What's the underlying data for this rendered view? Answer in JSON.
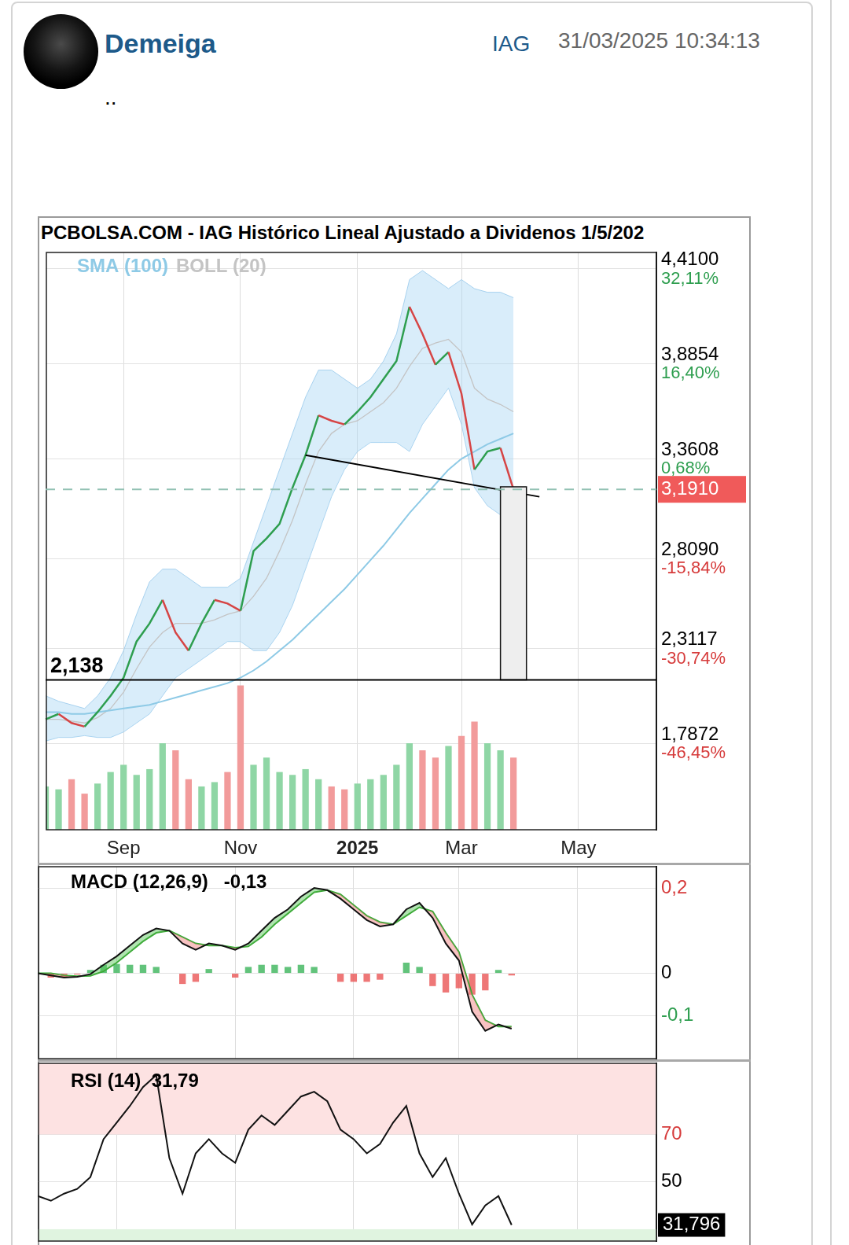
{
  "post": {
    "user": "Demeiga",
    "ticker": "IAG",
    "date": "31/03/2025 10:34:13",
    "text": ".."
  },
  "chart_data": [
    {
      "type": "line",
      "title": "PCBOLSA.COM - IAG Histórico Lineal Ajustado a Dividenos 1/5/202",
      "categories": [
        null,
        null,
        null,
        null,
        null,
        null,
        "Sep",
        null,
        null,
        null,
        null,
        null,
        null,
        null,
        null,
        "Nov",
        null,
        null,
        null,
        null,
        null,
        null,
        null,
        null,
        "2025",
        null,
        null,
        null,
        null,
        null,
        null,
        null,
        "Mar",
        null,
        null,
        null,
        null,
        null,
        null,
        null,
        null,
        "May",
        null,
        null,
        null,
        null,
        null,
        null
      ],
      "legend": "top-left",
      "grid": true,
      "series": [
        {
          "name": "SMA (100)",
          "color": "#8ecae6",
          "values": [
            1.96,
            1.96,
            1.95,
            1.95,
            1.96,
            1.97,
            1.98,
            1.99,
            2.0,
            2.02,
            2.04,
            2.06,
            2.08,
            2.1,
            2.12,
            2.15,
            2.19,
            2.24,
            2.3,
            2.36,
            2.43,
            2.5,
            2.57,
            2.64,
            2.72,
            2.8,
            2.88,
            2.97,
            3.06,
            3.14,
            3.22,
            3.3,
            3.36,
            3.4,
            3.44,
            3.47,
            3.5,
            null,
            null,
            null,
            null,
            null,
            null,
            null,
            null,
            null,
            null,
            null
          ]
        },
        {
          "name": "BOLL (20)",
          "color": "#c4c4c4",
          "values": [
            1.92,
            1.92,
            1.91,
            1.9,
            1.93,
            1.98,
            2.07,
            2.2,
            2.32,
            2.4,
            2.45,
            2.45,
            2.45,
            2.47,
            2.5,
            2.52,
            2.6,
            2.7,
            2.85,
            3.02,
            3.22,
            3.4,
            3.5,
            3.55,
            3.57,
            3.62,
            3.67,
            3.75,
            3.87,
            3.97,
            4.0,
            4.02,
            3.95,
            3.75,
            3.69,
            3.66,
            3.62,
            null,
            null,
            null,
            null,
            null,
            null,
            null,
            null,
            null,
            null,
            null
          ],
          "upper": [
            2.05,
            2.02,
            2.0,
            1.98,
            2.05,
            2.15,
            2.3,
            2.5,
            2.68,
            2.75,
            2.75,
            2.7,
            2.65,
            2.65,
            2.65,
            2.7,
            2.9,
            3.1,
            3.3,
            3.5,
            3.7,
            3.85,
            3.85,
            3.8,
            3.75,
            3.8,
            3.9,
            4.05,
            4.35,
            4.4,
            4.35,
            4.3,
            4.35,
            4.3,
            4.28,
            4.28,
            4.25,
            null,
            null,
            null,
            null,
            null,
            null,
            null,
            null,
            null,
            null,
            null
          ],
          "lower": [
            1.8,
            1.82,
            1.82,
            1.83,
            1.82,
            1.82,
            1.85,
            1.9,
            1.95,
            2.05,
            2.15,
            2.2,
            2.25,
            2.3,
            2.35,
            2.35,
            2.3,
            2.3,
            2.4,
            2.55,
            2.75,
            2.95,
            3.15,
            3.3,
            3.4,
            3.45,
            3.45,
            3.45,
            3.4,
            3.55,
            3.65,
            3.75,
            3.55,
            3.2,
            3.1,
            3.05,
            3.0,
            null,
            null,
            null,
            null,
            null,
            null,
            null,
            null,
            null,
            null,
            null
          ]
        },
        {
          "type": "bar",
          "axis": "y2",
          "values": [
            30,
            28,
            35,
            25,
            32,
            40,
            45,
            38,
            42,
            60,
            55,
            35,
            30,
            33,
            40,
            100,
            45,
            50,
            40,
            38,
            42,
            35,
            30,
            28,
            32,
            35,
            38,
            45,
            60,
            55,
            50,
            58,
            65,
            75,
            60,
            55,
            50,
            null,
            null,
            null,
            null,
            null,
            null,
            null,
            null,
            null,
            null,
            null
          ],
          "colors": [
            "#8fd6a5",
            "#8fd6a5",
            "#f29b9b",
            "#f29b9b",
            "#8fd6a5",
            "#8fd6a5",
            "#8fd6a5",
            "#8fd6a5",
            "#8fd6a5",
            "#8fd6a5",
            "#f29b9b",
            "#f29b9b",
            "#8fd6a5",
            "#8fd6a5",
            "#f29b9b",
            "#f29b9b",
            "#8fd6a5",
            "#8fd6a5",
            "#8fd6a5",
            "#8fd6a5",
            "#8fd6a5",
            "#8fd6a5",
            "#f29b9b",
            "#f29b9b",
            "#8fd6a5",
            "#8fd6a5",
            "#8fd6a5",
            "#8fd6a5",
            "#8fd6a5",
            "#f29b9b",
            "#f29b9b",
            "#8fd6a5",
            "#f29b9b",
            "#f29b9b",
            "#8fd6a5",
            "#8fd6a5",
            "#f29b9b",
            null,
            null,
            null,
            null,
            null,
            null,
            null,
            null,
            null,
            null,
            null
          ]
        },
        {
          "color": "#2e9e4f",
          "values": [
            1.92,
            1.95,
            1.9,
            1.88,
            1.96,
            2.05,
            2.15,
            2.35,
            2.45,
            2.58,
            2.4,
            2.3,
            2.45,
            2.58,
            2.56,
            2.52,
            2.85,
            2.92,
            3.0,
            3.2,
            3.38,
            3.6,
            3.57,
            3.55,
            3.62,
            3.7,
            3.8,
            3.9,
            4.2,
            4.05,
            3.88,
            3.95,
            3.72,
            3.3,
            3.4,
            3.42,
            3.191,
            null,
            null,
            null,
            null,
            null,
            null,
            null,
            null,
            null,
            null,
            null
          ],
          "colors": [
            "#2e9e4f",
            "#2e9e4f",
            "#d64545",
            "#d64545",
            "#2e9e4f",
            "#2e9e4f",
            "#2e9e4f",
            "#2e9e4f",
            "#2e9e4f",
            "#2e9e4f",
            "#d64545",
            "#d64545",
            "#2e9e4f",
            "#2e9e4f",
            "#d64545",
            "#d64545",
            "#2e9e4f",
            "#2e9e4f",
            "#2e9e4f",
            "#2e9e4f",
            "#2e9e4f",
            "#2e9e4f",
            "#d64545",
            "#d64545",
            "#2e9e4f",
            "#2e9e4f",
            "#2e9e4f",
            "#2e9e4f",
            "#2e9e4f",
            "#d64545",
            "#d64545",
            "#2e9e4f",
            "#d64545",
            "#d64545",
            "#2e9e4f",
            "#2e9e4f",
            "#d64545",
            null,
            null,
            null,
            null,
            null,
            null,
            null,
            null,
            null,
            null,
            null
          ]
        },
        {
          "color": "#000000",
          "values": [
            null,
            null,
            null,
            null,
            null,
            null,
            null,
            null,
            null,
            null,
            null,
            null,
            null,
            null,
            null,
            null,
            null,
            null,
            null,
            null,
            3.38,
            null,
            null,
            null,
            null,
            null,
            null,
            null,
            null,
            null,
            null,
            null,
            null,
            null,
            null,
            null,
            null,
            null,
            3.15,
            null,
            null,
            null,
            null,
            null,
            null,
            null,
            null,
            null
          ]
        }
      ],
      "ylim": [
        1.31,
        4.5
      ],
      "yticks": [
        {
          "value": 4.41,
          "label": [
            "4,4100",
            "32,11%"
          ]
        },
        {
          "value": 3.8854,
          "label": [
            "3,8854",
            "16,40%"
          ]
        },
        {
          "value": 3.3608,
          "label": [
            "3,3608",
            "0,68%"
          ]
        },
        {
          "value": 2.809,
          "label": [
            "2,8090",
            "-15,84%"
          ]
        },
        {
          "value": 2.3117,
          "label": [
            "2,3117",
            "-30,74%"
          ]
        },
        {
          "value": 1.7872,
          "label": [
            "1,7872",
            "-46,45%"
          ]
        }
      ],
      "y2lim": [
        0,
        400
      ],
      "y2ticks": [],
      "levels": [
        {
          "value": 2.138,
          "label": "2,138",
          "color": "#000000",
          "line_style": "solid"
        },
        {
          "value": 3.191,
          "label": "3,1910",
          "color": "#f05a5a",
          "line_style": "dashed"
        }
      ],
      "projection": {
        "x": [
          35,
          37
        ],
        "y": [
          2.138,
          3.205
        ]
      }
    },
    {
      "type": "macd",
      "title": "MACD (12,26,9)   -0,13",
      "categories": [
        null,
        null,
        null,
        null,
        null,
        null,
        "Sep",
        null,
        null,
        null,
        null,
        null,
        null,
        null,
        null,
        "Nov",
        null,
        null,
        null,
        null,
        null,
        null,
        null,
        null,
        "2025",
        null,
        null,
        null,
        null,
        null,
        null,
        null,
        "Mar",
        null,
        null,
        null,
        null,
        null,
        null,
        null,
        null,
        "May",
        null,
        null,
        null,
        null,
        null,
        null
      ],
      "tick_labels": "y",
      "grid": true,
      "series": [
        {
          "color": "#111111",
          "values": [
            0,
            -0.005,
            -0.01,
            -0.008,
            -0.002,
            0.02,
            0.04,
            0.065,
            0.09,
            0.105,
            0.1,
            0.07,
            0.055,
            0.07,
            0.065,
            0.055,
            0.07,
            0.1,
            0.13,
            0.15,
            0.18,
            0.2,
            0.195,
            0.175,
            0.15,
            0.125,
            0.11,
            0.115,
            0.15,
            0.165,
            0.13,
            0.07,
            0.03,
            -0.09,
            -0.135,
            -0.12,
            -0.13,
            null,
            null,
            null,
            null,
            null,
            null,
            null,
            null,
            null,
            null,
            null
          ]
        },
        {
          "color": "#33aa33",
          "values": [
            0,
            0,
            -0.005,
            -0.007,
            -0.006,
            0.005,
            0.025,
            0.05,
            0.075,
            0.095,
            0.1,
            0.085,
            0.07,
            0.065,
            0.065,
            0.06,
            0.063,
            0.085,
            0.115,
            0.14,
            0.165,
            0.19,
            0.195,
            0.185,
            0.16,
            0.135,
            0.12,
            0.115,
            0.135,
            0.155,
            0.145,
            0.095,
            0.05,
            -0.05,
            -0.11,
            -0.125,
            -0.125,
            null,
            null,
            null,
            null,
            null,
            null,
            null,
            null,
            null,
            null,
            null
          ]
        },
        {
          "type": "bar",
          "values": [
            0,
            -0.01,
            -0.01,
            -0.003,
            0.008,
            0.02,
            0.022,
            0.02,
            0.02,
            0.015,
            0,
            -0.025,
            -0.02,
            0.01,
            0,
            -0.01,
            0.015,
            0.02,
            0.02,
            0.015,
            0.02,
            0.015,
            0,
            -0.02,
            -0.02,
            -0.02,
            -0.015,
            0,
            0.025,
            0.015,
            -0.03,
            -0.045,
            -0.035,
            -0.05,
            -0.04,
            0.008,
            -0.005,
            null,
            null,
            null,
            null,
            null,
            null,
            null,
            null,
            null,
            null,
            null
          ]
        }
      ],
      "ylim": [
        -0.2,
        0.25
      ],
      "yticks": [
        {
          "value": 0.2,
          "label": "0,2"
        },
        0,
        {
          "value": -0.1,
          "label": "-0,1"
        }
      ]
    },
    {
      "type": "line",
      "title": "RSI (14)  31,79",
      "categories": [
        null,
        null,
        null,
        null,
        null,
        null,
        "Sep",
        null,
        null,
        null,
        null,
        null,
        null,
        null,
        null,
        "Nov",
        null,
        null,
        null,
        null,
        null,
        null,
        null,
        null,
        "2025",
        null,
        null,
        null,
        null,
        null,
        null,
        null,
        "Mar",
        null,
        null,
        null,
        null,
        null,
        null,
        null,
        null,
        "May",
        null,
        null,
        null,
        null,
        null,
        null
      ],
      "tick_labels": "y",
      "grid": true,
      "series": [
        {
          "color": "#111111",
          "values": [
            44,
            42,
            45,
            47,
            52,
            68,
            75,
            82,
            90,
            95,
            60,
            45,
            62,
            68,
            62,
            58,
            72,
            78,
            74,
            80,
            86,
            88,
            84,
            72,
            68,
            62,
            66,
            75,
            82,
            62,
            52,
            60,
            45,
            32,
            40,
            44,
            31.796,
            null,
            null,
            null,
            null,
            null,
            null,
            null,
            null,
            null,
            null,
            null
          ],
          "value_labels": [
            null,
            null,
            null,
            null,
            null,
            null,
            null,
            null,
            null,
            null,
            null,
            null,
            null,
            null,
            null,
            null,
            null,
            null,
            null,
            null,
            null,
            null,
            null,
            null,
            null,
            null,
            null,
            null,
            null,
            null,
            null,
            null,
            null,
            null,
            null,
            null,
            "31,796",
            null,
            null,
            null,
            null,
            null,
            null,
            null,
            null,
            null,
            null,
            null
          ]
        }
      ],
      "ylim": [
        25,
        100
      ],
      "yticks": [
        70,
        50
      ],
      "zones": [
        [
          70,
          100
        ],
        [
          0,
          30
        ]
      ]
    }
  ]
}
